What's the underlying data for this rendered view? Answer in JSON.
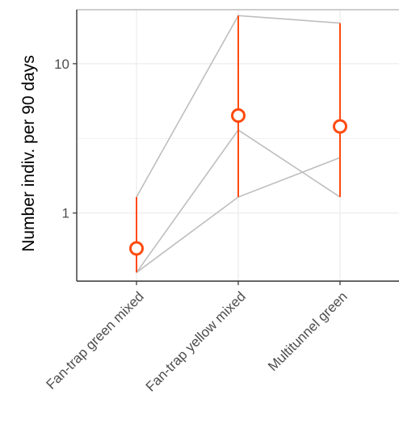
{
  "chart_data": {
    "type": "line",
    "title": "",
    "xlabel": "",
    "ylabel": "Number indiv. per 90 days",
    "yscale": "log",
    "ylim": [
      0.35,
      23
    ],
    "y_ticks": [
      {
        "value": 1,
        "label": "1"
      },
      {
        "value": 10,
        "label": "10"
      }
    ],
    "y_minor_gridlines": [
      0.3162,
      3.162
    ],
    "categories": [
      "Fan-trap green mixed",
      "Fan-trap yellow mixed",
      "Multitunnel green"
    ],
    "grid": true,
    "legend": "none",
    "individual_series": [
      {
        "values": [
          1.28,
          21.0,
          18.7
        ]
      },
      {
        "values": [
          0.4,
          3.6,
          1.28
        ]
      },
      {
        "values": [
          0.4,
          1.28,
          2.35
        ]
      }
    ],
    "summary": {
      "mean": [
        0.58,
        4.5,
        3.8
      ],
      "range_low": [
        0.4,
        1.28,
        1.28
      ],
      "range_high": [
        1.28,
        21.0,
        18.7
      ]
    },
    "colors": {
      "individual_lines": "#bebebe",
      "summary": "#ff4a0f",
      "grid": "#ebebeb",
      "panel_border": "#333333"
    }
  }
}
